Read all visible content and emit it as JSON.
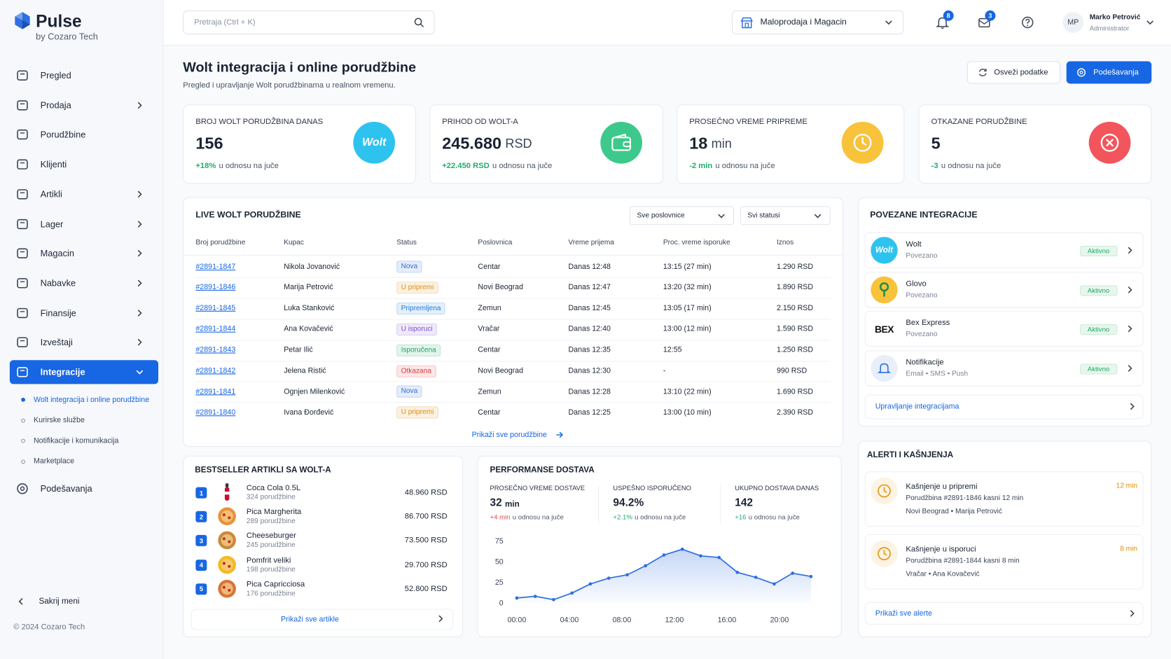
{
  "brand": {
    "name": "Pulse",
    "tagline": "by Cozaro Tech"
  },
  "sidebar": {
    "items": [
      {
        "label": "Pregled"
      },
      {
        "label": "Prodaja",
        "submenu": true
      },
      {
        "label": "Porudžbine"
      },
      {
        "label": "Klijenti"
      },
      {
        "label": "Artikli",
        "submenu": true
      },
      {
        "label": "Lager",
        "submenu": true
      },
      {
        "label": "Magacin",
        "submenu": true
      },
      {
        "label": "Nabavke",
        "submenu": true
      },
      {
        "label": "Finansije",
        "submenu": true
      },
      {
        "label": "Izveštaji",
        "submenu": true
      },
      {
        "label": "Integracije",
        "submenu": true,
        "active": true
      }
    ],
    "subitems": [
      {
        "label": "Wolt integracija i online porudžbine",
        "active": true
      },
      {
        "label": "Kurirske službe"
      },
      {
        "label": "Notifikacije i komunikacija"
      },
      {
        "label": "Marketplace"
      }
    ],
    "settings": "Podešavanja",
    "collapse": "Sakrij meni",
    "copyright": "© 2024 Cozaro Tech"
  },
  "header": {
    "search": "Pretraja (Ctrl + K)",
    "store": "Maloprodaja i Magacin",
    "notifications": "8",
    "messages": "3",
    "user": {
      "initials": "MP",
      "name": "Marko Petrović",
      "role": "Administrator"
    }
  },
  "page": {
    "title": "Wolt integracija i online porudžbine",
    "subtitle": "Pregled i upravljanje Wolt porudžbinama u realnom vremenu.",
    "refresh": "Osveži podatke",
    "settings": "Podešavanja"
  },
  "kpis": [
    {
      "label": "BROJ WOLT PORUDŽBINA DANAS",
      "value": "156",
      "delta": "+18%",
      "delta_text": "u odnosu na juče",
      "delta_color": "#1fae6b",
      "icon": "wolt",
      "icon_text": "Wolt",
      "color": "#2ec3ef"
    },
    {
      "label": "PRIHOD OD WOLT-A",
      "value": "245.680",
      "unit": "RSD",
      "delta": "+22.450 RSD",
      "delta_text": "u odnosu na juče",
      "delta_color": "#1fae6b",
      "icon": "wallet",
      "color": "#3dc98b"
    },
    {
      "label": "PROSEČNO VREME PRIPREME",
      "value": "18",
      "unit": "min",
      "delta": "-2 min",
      "delta_text": "u odnosu na juče",
      "delta_color": "#1fae6b",
      "icon": "clock",
      "color": "#f8c23a"
    },
    {
      "label": "OTKAZANE PORUDŽBINE",
      "value": "5",
      "delta": "-3",
      "delta_text": "u odnosu na juče",
      "delta_color": "#1fae6b",
      "icon": "cancel",
      "color": "#f2555c"
    }
  ],
  "orders": {
    "title": "LIVE WOLT PORUDŽBINE",
    "filters": [
      "Sve poslovnice",
      "Svi statusi"
    ],
    "columns": [
      "Broj porudžbine",
      "Kupac",
      "Status",
      "Poslovnica",
      "Vreme prijema",
      "Proc. vreme isporuke",
      "Iznos"
    ],
    "rows": [
      {
        "id": "#2891-1847",
        "customer": "Nikola Jovanović",
        "status": "Nova",
        "status_color": "#2d6fd8",
        "branch": "Centar",
        "received": "Danas 12:48",
        "delivery": "13:15 (27 min)",
        "amount": "1.290 RSD"
      },
      {
        "id": "#2891-1846",
        "customer": "Marija Petrović",
        "status": "U pripremi",
        "status_color": "#e08d0b",
        "branch": "Novi Beograd",
        "received": "Danas 12:47",
        "delivery": "13:20 (32 min)",
        "amount": "1.890 RSD"
      },
      {
        "id": "#2891-1845",
        "customer": "Luka Stanković",
        "status": "Pripremljena",
        "status_color": "#1f7ae0",
        "branch": "Zemun",
        "received": "Danas 12:45",
        "delivery": "13:05 (17 min)",
        "amount": "2.150 RSD"
      },
      {
        "id": "#2891-1844",
        "customer": "Ana Kovačević",
        "status": "U isporuci",
        "status_color": "#7a4fd6",
        "branch": "Vračar",
        "received": "Danas 12:40",
        "delivery": "13:00 (12 min)",
        "amount": "1.590 RSD"
      },
      {
        "id": "#2891-1843",
        "customer": "Petar Ilić",
        "status": "Isporučena",
        "status_color": "#1fa463",
        "branch": "Centar",
        "received": "Danas 12:35",
        "delivery": "12:55",
        "amount": "1.250 RSD"
      },
      {
        "id": "#2891-1842",
        "customer": "Jelena Ristić",
        "status": "Otkazana",
        "status_color": "#e03a3a",
        "branch": "Novi Beograd",
        "received": "Danas 12:30",
        "delivery": "-",
        "amount": "990 RSD"
      },
      {
        "id": "#2891-1841",
        "customer": "Ognjen Milenković",
        "status": "Nova",
        "status_color": "#2d6fd8",
        "branch": "Zemun",
        "received": "Danas 12:28",
        "delivery": "13:10 (22 min)",
        "amount": "1.690 RSD"
      },
      {
        "id": "#2891-1840",
        "customer": "Ivana Đorđević",
        "status": "U pripremi",
        "status_color": "#e08d0b",
        "branch": "Centar",
        "received": "Danas 12:25",
        "delivery": "13:00 (10 min)",
        "amount": "2.390 RSD"
      }
    ],
    "footer": "Prikaži sve porudžbine"
  },
  "integrations": {
    "title": "POVEZANE INTEGRACIJE",
    "items": [
      {
        "name": "Wolt",
        "sub": "Povezano",
        "status": "Aktivno",
        "logo_text": "Wolt",
        "color": "#2ec3ef"
      },
      {
        "name": "Glovo",
        "sub": "Povezano",
        "status": "Aktivno",
        "color": "#f8c23a"
      },
      {
        "name": "Bex Express",
        "sub": "Povezano",
        "status": "Aktivno",
        "logo_text": "BEX",
        "color": "#ffffff"
      },
      {
        "name": "Notifikacije",
        "sub": "Email • SMS • Push",
        "status": "Aktivno",
        "color": "#e8effb"
      }
    ],
    "footer": "Upravljanje integracijama"
  },
  "bestsellers": {
    "title": "BESTSELLER ARTIKLI SA WOLT-A",
    "items": [
      {
        "rank": "1",
        "name": "Coca Cola 0.5L",
        "orders": "324 porudžbine",
        "revenue": "48.960 RSD",
        "color": "#c8102e"
      },
      {
        "rank": "2",
        "name": "Pica Margherita",
        "orders": "289 porudžbine",
        "revenue": "86.700 RSD",
        "color": "#e9923a"
      },
      {
        "rank": "3",
        "name": "Cheeseburger",
        "orders": "245 porudžbine",
        "revenue": "73.500 RSD",
        "color": "#c98a3c"
      },
      {
        "rank": "4",
        "name": "Pomfrit veliki",
        "orders": "198 porudžbine",
        "revenue": "29.700 RSD",
        "color": "#f5b921"
      },
      {
        "rank": "5",
        "name": "Pica Capricciosa",
        "orders": "176 porudžbine",
        "revenue": "52.800 RSD",
        "color": "#d9743a"
      }
    ],
    "footer": "Prikaži sve artikle"
  },
  "performance": {
    "title": "PERFORMANSE DOSTAVA",
    "metrics": [
      {
        "label": "PROSEČNO VREME DOSTAVE",
        "value": "32",
        "unit": "min",
        "delta": "+4 min",
        "delta_text": "u odnosu na juče",
        "delta_color": "#e5484d"
      },
      {
        "label": "USPEŠNO ISPORUČENO",
        "value": "94.2%",
        "delta": "+2.1%",
        "delta_text": "u odnosu na juče",
        "delta_color": "#1fae6b"
      },
      {
        "label": "UKUPNO DOSTAVA DANAS",
        "value": "142",
        "delta": "+16",
        "delta_text": "u odnosu na juče",
        "delta_color": "#1fae6b"
      }
    ]
  },
  "chart_data": {
    "type": "line",
    "color": "#2f6fe0",
    "area": true,
    "x": [
      0,
      1.4,
      2.8,
      4.2,
      5.6,
      7,
      8.4,
      9.8,
      11.2,
      12.6,
      14,
      15.4,
      16.8,
      18.2,
      19.6,
      21,
      22.4
    ],
    "values": [
      6,
      8,
      4,
      12,
      23,
      30,
      34,
      45,
      58,
      65,
      57,
      55,
      37,
      31,
      23,
      36,
      32
    ],
    "xlim": [
      -0.8,
      23.2
    ],
    "ylim": [
      0,
      80
    ],
    "xticks": [
      {
        "value": 0,
        "label": "00:00"
      },
      {
        "value": 4,
        "label": "04:00"
      },
      {
        "value": 8,
        "label": "08:00"
      },
      {
        "value": 12,
        "label": "12:00"
      },
      {
        "value": 16,
        "label": "16:00"
      },
      {
        "value": 20,
        "label": "20:00"
      }
    ],
    "yticks": [
      0,
      25,
      50,
      75
    ]
  },
  "alerts": {
    "title": "ALERTI I KAŠNJENJA",
    "items": [
      {
        "title": "Kašnjenje u pripremi",
        "time": "12 min",
        "line1": "Porudžbina #2891-1846 kasni 12 min",
        "line2": "Novi Beograd • Marija Petrović"
      },
      {
        "title": "Kašnjenje u isporuci",
        "time": "8 min",
        "line1": "Porudžbina #2891-1844 kasni 8 min",
        "line2": "Vračar • Ana Kovačević"
      }
    ],
    "footer": "Prikaži sve alerte"
  }
}
